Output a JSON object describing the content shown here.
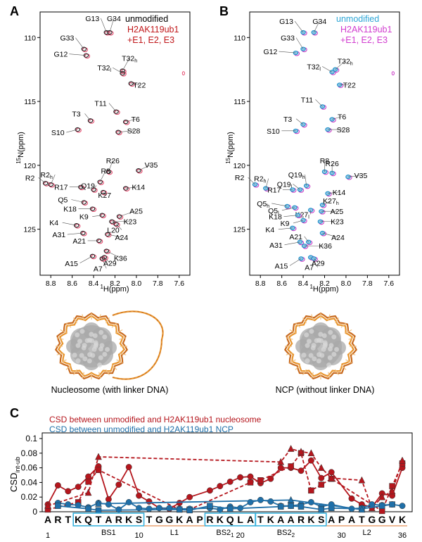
{
  "panels": {
    "A": {
      "letter": "A",
      "legend": [
        "unmodified",
        "H2AK119ub1",
        "+E1, E2, E3"
      ],
      "legend_colors": [
        "#000000",
        "#c0171a",
        "#c0171a"
      ],
      "peak_colors": [
        "#222222",
        "#e64a6e"
      ],
      "peaks": [
        {
          "label": "G13",
          "h": 8.28,
          "n": 109.6
        },
        {
          "label": "G34",
          "h": 8.25,
          "n": 109.6
        },
        {
          "label": "G33",
          "h": 8.49,
          "n": 110.9
        },
        {
          "label": "G12",
          "h": 8.47,
          "n": 111.4
        },
        {
          "label": "T32h",
          "h": 8.13,
          "n": 112.6
        },
        {
          "label": "T32l",
          "h": 8.13,
          "n": 112.8
        },
        {
          "label": "T22",
          "h": 8.05,
          "n": 113.6
        },
        {
          "label": "T11",
          "h": 8.19,
          "n": 115.8
        },
        {
          "label": "T6",
          "h": 8.1,
          "n": 116.6
        },
        {
          "label": "T3",
          "h": 8.43,
          "n": 116.5
        },
        {
          "label": "S10",
          "h": 8.55,
          "n": 117.2
        },
        {
          "label": "S28",
          "h": 8.17,
          "n": 117.4
        },
        {
          "label": "R26",
          "h": 8.26,
          "n": 120.5
        },
        {
          "label": "V35",
          "h": 7.98,
          "n": 120.4
        },
        {
          "label": "R2",
          "h": 8.85,
          "n": 121.4
        },
        {
          "label": "R2h",
          "h": 8.8,
          "n": 121.5
        },
        {
          "label": "R8",
          "h": 8.34,
          "n": 121.3
        },
        {
          "label": "R17",
          "h": 8.52,
          "n": 121.7
        },
        {
          "label": "Q19",
          "h": 8.4,
          "n": 121.9
        },
        {
          "label": "K27",
          "h": 8.31,
          "n": 122.1
        },
        {
          "label": "K14",
          "h": 8.1,
          "n": 121.8
        },
        {
          "label": "Q5",
          "h": 8.49,
          "n": 122.9
        },
        {
          "label": "K18",
          "h": 8.41,
          "n": 123.4
        },
        {
          "label": "K9",
          "h": 8.32,
          "n": 123.9
        },
        {
          "label": "A25",
          "h": 8.16,
          "n": 124.0
        },
        {
          "label": "K23",
          "h": 8.23,
          "n": 124.4
        },
        {
          "label": "L20",
          "h": 8.19,
          "n": 124.6
        },
        {
          "label": "K4",
          "h": 8.56,
          "n": 124.7
        },
        {
          "label": "A31",
          "h": 8.5,
          "n": 125.3
        },
        {
          "label": "A24",
          "h": 8.27,
          "n": 125.4
        },
        {
          "label": "A21",
          "h": 8.35,
          "n": 125.9
        },
        {
          "label": "K36",
          "h": 8.28,
          "n": 126.7
        },
        {
          "label": "A15",
          "h": 8.41,
          "n": 127.1
        },
        {
          "label": "A7",
          "h": 8.32,
          "n": 127.3
        },
        {
          "label": "A29",
          "h": 8.3,
          "n": 127.2
        }
      ],
      "x_ticks": [
        "8.8",
        "8.6",
        "8.4",
        "8.2",
        "8.0",
        "7.8",
        "7.6"
      ],
      "y_ticks": [
        "110",
        "115",
        "120",
        "125"
      ],
      "xlabel_sup": "1",
      "xlabel": "H(ppm)",
      "ylabel_sup": "15",
      "ylabel": "N(ppm)",
      "caption": "Nucleosome (with linker DNA)"
    },
    "B": {
      "letter": "B",
      "legend": [
        "unmodified",
        "H2AK119ub1",
        "+E1, E2, E3"
      ],
      "legend_colors": [
        "#2ea6d6",
        "#d13ccf",
        "#d13ccf"
      ],
      "peak_colors": [
        "#1f8fc7",
        "#c93bc6"
      ],
      "peaks": [
        {
          "label": "G13",
          "h": 8.4,
          "n": 109.6
        },
        {
          "label": "G34",
          "h": 8.3,
          "n": 109.6
        },
        {
          "label": "G33",
          "h": 8.4,
          "n": 110.9
        },
        {
          "label": "G12",
          "h": 8.47,
          "n": 111.2
        },
        {
          "label": "T32l",
          "h": 8.13,
          "n": 112.7
        },
        {
          "label": "T32h",
          "h": 8.1,
          "n": 112.5
        },
        {
          "label": "T22",
          "h": 8.06,
          "n": 113.7
        },
        {
          "label": "T11",
          "h": 8.22,
          "n": 115.4
        },
        {
          "label": "T6",
          "h": 8.13,
          "n": 116.4
        },
        {
          "label": "T3",
          "h": 8.4,
          "n": 116.8
        },
        {
          "label": "S10",
          "h": 8.47,
          "n": 117.3
        },
        {
          "label": "S28",
          "h": 8.17,
          "n": 117.2
        },
        {
          "label": "R8",
          "h": 8.2,
          "n": 120.5
        },
        {
          "label": "R26",
          "h": 8.13,
          "n": 120.6
        },
        {
          "label": "V35",
          "h": 7.98,
          "n": 120.9
        },
        {
          "label": "R2",
          "h": 8.85,
          "n": 121.5
        },
        {
          "label": "R2h",
          "h": 8.75,
          "n": 121.8
        },
        {
          "label": "Q19h",
          "h": 8.37,
          "n": 121.6
        },
        {
          "label": "Q19l",
          "h": 8.43,
          "n": 121.9
        },
        {
          "label": "R17",
          "h": 8.5,
          "n": 121.9
        },
        {
          "label": "K14",
          "h": 8.17,
          "n": 122.2
        },
        {
          "label": "Q5h",
          "h": 8.55,
          "n": 123.2
        },
        {
          "label": "K27h",
          "h": 8.22,
          "n": 123.1
        },
        {
          "label": "Q5l",
          "h": 8.48,
          "n": 123.3
        },
        {
          "label": "K27l",
          "h": 8.33,
          "n": 123.5
        },
        {
          "label": "A25",
          "h": 8.23,
          "n": 123.6
        },
        {
          "label": "K18",
          "h": 8.45,
          "n": 123.9
        },
        {
          "label": "K9",
          "h": 8.4,
          "n": 124.3
        },
        {
          "label": "K23",
          "h": 8.24,
          "n": 124.4
        },
        {
          "label": "K4",
          "h": 8.5,
          "n": 124.9
        },
        {
          "label": "A24",
          "h": 8.22,
          "n": 125.3
        },
        {
          "label": "A31",
          "h": 8.43,
          "n": 126.0
        },
        {
          "label": "A21",
          "h": 8.35,
          "n": 126.0
        },
        {
          "label": "K36",
          "h": 8.39,
          "n": 126.3
        },
        {
          "label": "A15",
          "h": 8.42,
          "n": 127.3
        },
        {
          "label": "A7",
          "h": 8.33,
          "n": 127.2
        },
        {
          "label": "A29",
          "h": 8.3,
          "n": 127.3
        }
      ],
      "x_ticks": [
        "8.8",
        "8.6",
        "8.4",
        "8.2",
        "8.0",
        "7.8",
        "7.6"
      ],
      "y_ticks": [
        "110",
        "115",
        "120",
        "125"
      ],
      "xlabel_sup": "1",
      "xlabel": "H(ppm)",
      "ylabel_sup": "15",
      "ylabel": "N(ppm)",
      "caption": "NCP (without linker DNA)"
    }
  },
  "chart_data": {
    "type": "line",
    "panel_letter": "C",
    "legend": [
      {
        "text": "CSD between unmodified and H2AK119ub1 nucleosome",
        "color": "#b5161d"
      },
      {
        "text": "CSD between unmodified and H2AK119ub1 NCP",
        "color": "#1f6fa8"
      }
    ],
    "ylabel": "CSD",
    "ylabel_sub": "int-ub",
    "ylim": [
      0,
      0.1
    ],
    "y_ticks": [
      "0",
      "0.02",
      "0.04",
      "0.06",
      "0.08",
      "0.1"
    ],
    "y_tick_values": [
      0,
      0.02,
      0.04,
      0.06,
      0.08,
      0.1
    ],
    "residues": [
      "A",
      "R",
      "T",
      "K",
      "Q",
      "T",
      "A",
      "R",
      "K",
      "S",
      "T",
      "G",
      "G",
      "K",
      "A",
      "P",
      "R",
      "K",
      "Q",
      "L",
      "A",
      "T",
      "K",
      "A",
      "A",
      "R",
      "K",
      "S",
      "A",
      "P",
      "A",
      "T",
      "G",
      "G",
      "V",
      "K"
    ],
    "residue_numbers": [
      {
        "pos": 1,
        "label": "1"
      },
      {
        "pos": 10,
        "label": "10"
      },
      {
        "pos": 20,
        "label": "20"
      },
      {
        "pos": 30,
        "label": "30"
      },
      {
        "pos": 36,
        "label": "36"
      }
    ],
    "boxes": [
      {
        "from": 4,
        "to": 10
      },
      {
        "from": 17,
        "to": 21
      },
      {
        "from": 22,
        "to": 28
      }
    ],
    "regions": [
      {
        "label": "BS1",
        "center": 7
      },
      {
        "label": "L1",
        "center": 13.5
      },
      {
        "label": "BS2",
        "sub": "1",
        "center": 18.5
      },
      {
        "label": "BS2",
        "sub": "2",
        "center": 24.5
      },
      {
        "label": "L2",
        "center": 32.5
      }
    ],
    "series": [
      {
        "name": "nucleosome",
        "marker": "circle",
        "color": "#b5161d",
        "dashed": false,
        "x": [
          1,
          2,
          3,
          4,
          5,
          6,
          7,
          8,
          9,
          10,
          11,
          12,
          13,
          14,
          15,
          17,
          18,
          19,
          20,
          21,
          22,
          23,
          24,
          25,
          26,
          27,
          28,
          29,
          31,
          32,
          33,
          34,
          35,
          36
        ],
        "y": [
          0.01,
          0.036,
          0.028,
          0.034,
          0.048,
          0.062,
          0.017,
          0.037,
          0.061,
          0.022,
          0.014,
          0.005,
          0.004,
          0.012,
          0.02,
          0.029,
          0.035,
          0.041,
          0.047,
          0.048,
          0.039,
          0.045,
          0.06,
          0.06,
          0.056,
          0.07,
          0.046,
          0.054,
          0.018,
          0.01,
          0.006,
          0.025,
          0.022,
          0.06
        ]
      },
      {
        "name": "nucleosome (peak doublets)",
        "marker": "square",
        "color": "#b5161d",
        "dashed": true,
        "x": [
          1,
          4,
          5,
          6,
          14,
          15,
          21,
          22,
          25,
          26,
          27,
          28,
          29,
          34,
          35,
          36
        ],
        "y": [
          0.003,
          0.013,
          0.041,
          0.057,
          0.003,
          0.003,
          0.04,
          0.043,
          0.062,
          0.08,
          0.029,
          0.037,
          0.045,
          0.001,
          0.035,
          0.066
        ]
      },
      {
        "name": "nucleosome (other peak)",
        "marker": "triangle",
        "color": "#b5161d",
        "dashed": true,
        "x": [
          1,
          5,
          6,
          24,
          25,
          26,
          27,
          28,
          29,
          32,
          33,
          34,
          35,
          36
        ],
        "y": [
          0.008,
          0.026,
          0.075,
          0.068,
          0.086,
          0.082,
          0.08,
          0.06,
          0.046,
          0.043,
          0.005,
          0.02,
          0.028,
          0.07
        ]
      },
      {
        "name": "NCP",
        "marker": "circle",
        "color": "#1f6fa8",
        "dashed": false,
        "x": [
          2,
          3,
          4,
          5,
          6,
          7,
          8,
          9,
          10,
          11,
          12,
          13,
          14,
          15,
          17,
          18,
          19,
          20,
          21,
          22,
          23,
          24,
          25,
          26,
          27,
          28,
          29,
          31,
          32,
          33,
          34,
          35,
          36
        ],
        "y": [
          0.012,
          0.01,
          0.009,
          0.006,
          0.012,
          0.01,
          0.003,
          0.013,
          0.005,
          0.004,
          0.005,
          0.005,
          0.004,
          0.004,
          0.005,
          0.003,
          0.007,
          0.005,
          0.013,
          0.016,
          0.014,
          0.008,
          0.008,
          0.01,
          0.013,
          0.007,
          0.01,
          0.004,
          0.005,
          0.01,
          0.009,
          0.01,
          0.008
        ]
      },
      {
        "name": "NCP (peak doublets)",
        "marker": "square",
        "color": "#1f6fa8",
        "dashed": false,
        "x": [
          2,
          5,
          6,
          14,
          15,
          17,
          19,
          24,
          25,
          26,
          28,
          29,
          32,
          34,
          35
        ],
        "y": [
          0.008,
          0.004,
          0.002,
          0.003,
          0.002,
          0.008,
          0.004,
          0.007,
          0.008,
          0.007,
          0.003,
          0.005,
          0.004,
          0.008,
          0.01
        ]
      },
      {
        "name": "NCP (other peak)",
        "marker": "triangle",
        "color": "#1f6fa8",
        "dashed": false,
        "x": [
          6,
          25,
          32
        ],
        "y": [
          0.011,
          0.016,
          0.003
        ]
      }
    ]
  }
}
